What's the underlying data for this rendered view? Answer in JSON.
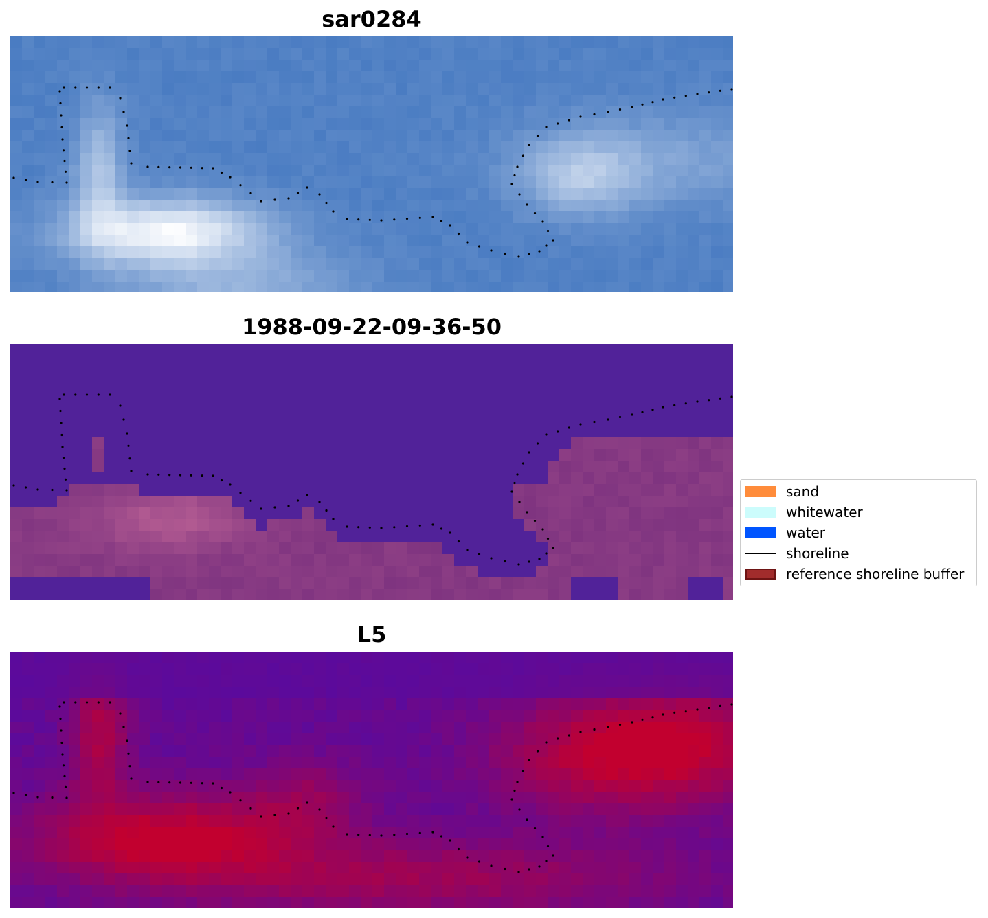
{
  "panels": [
    {
      "id": "sar",
      "title": "sar0284"
    },
    {
      "id": "classification",
      "title": "1988-09-22-09-36-50"
    },
    {
      "id": "l5",
      "title": "L5"
    }
  ],
  "legend": {
    "items": [
      {
        "label": "sand",
        "kind": "patch",
        "color": "#ff8c3b"
      },
      {
        "label": "whitewater",
        "kind": "patch",
        "color": "#ccfcfc"
      },
      {
        "label": "water",
        "kind": "patch",
        "color": "#0055ff"
      },
      {
        "label": "shoreline",
        "kind": "line",
        "color": "#000000"
      },
      {
        "label": "reference shoreline buffer",
        "kind": "patch",
        "color": "#a12c2c",
        "edge": "#6e1414"
      }
    ]
  },
  "colors": {
    "sar_base": "#4a7cc2",
    "sar_bright": "#ffffff",
    "class_water": "#512299",
    "class_land": "#7f3480",
    "class_land_light": "#b45c92",
    "l5_low": "#5b0a9c",
    "l5_high": "#c2002f",
    "shoreline_dots": "#000000"
  }
}
